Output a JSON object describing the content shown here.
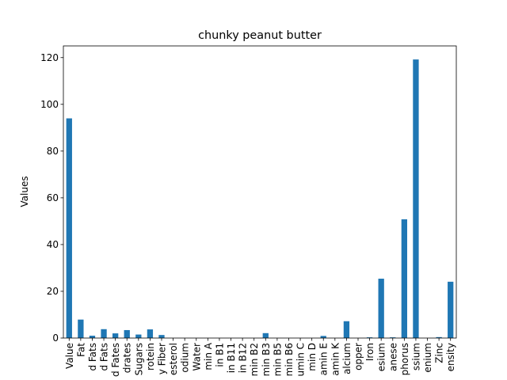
{
  "chart_data": {
    "type": "bar",
    "title": "chunky peanut butter",
    "xlabel": "",
    "ylabel": "Values",
    "categories": [
      "Value",
      "Fat",
      "d Fats",
      "d Fats",
      "d Fates",
      "drates",
      "Sugars",
      "rotein",
      "y Fiber",
      "esterol",
      "odium",
      "Water",
      "min A",
      "in B1",
      "in B11",
      "in B12",
      "min B2",
      "min B3",
      "min B5",
      "min B6",
      "umin C",
      "min D",
      "amin E",
      "amin K",
      "alcium",
      "opper",
      "Iron",
      "esium",
      "anese",
      "phorus",
      "ssium",
      "enium",
      "Zinc",
      "ensity"
    ],
    "series": [
      {
        "values": [
          94.0,
          7.9,
          1.0,
          3.8,
          2.0,
          3.4,
          1.5,
          3.7,
          1.3,
          0.0,
          0.0,
          0.0,
          0.0,
          0.0,
          0.0,
          0.0,
          0.0,
          2.1,
          0.0,
          0.0,
          0.0,
          0.0,
          0.9,
          0.0,
          7.2,
          0.0,
          0.3,
          25.4,
          0.3,
          50.8,
          119.2,
          0.0,
          0.4,
          24.1
        ],
        "color": "#1f77b4"
      }
    ],
    "ylim": [
      0,
      125
    ],
    "yticks": [
      0,
      20,
      40,
      60,
      80,
      100,
      120
    ],
    "grid": false,
    "legend": "none"
  }
}
